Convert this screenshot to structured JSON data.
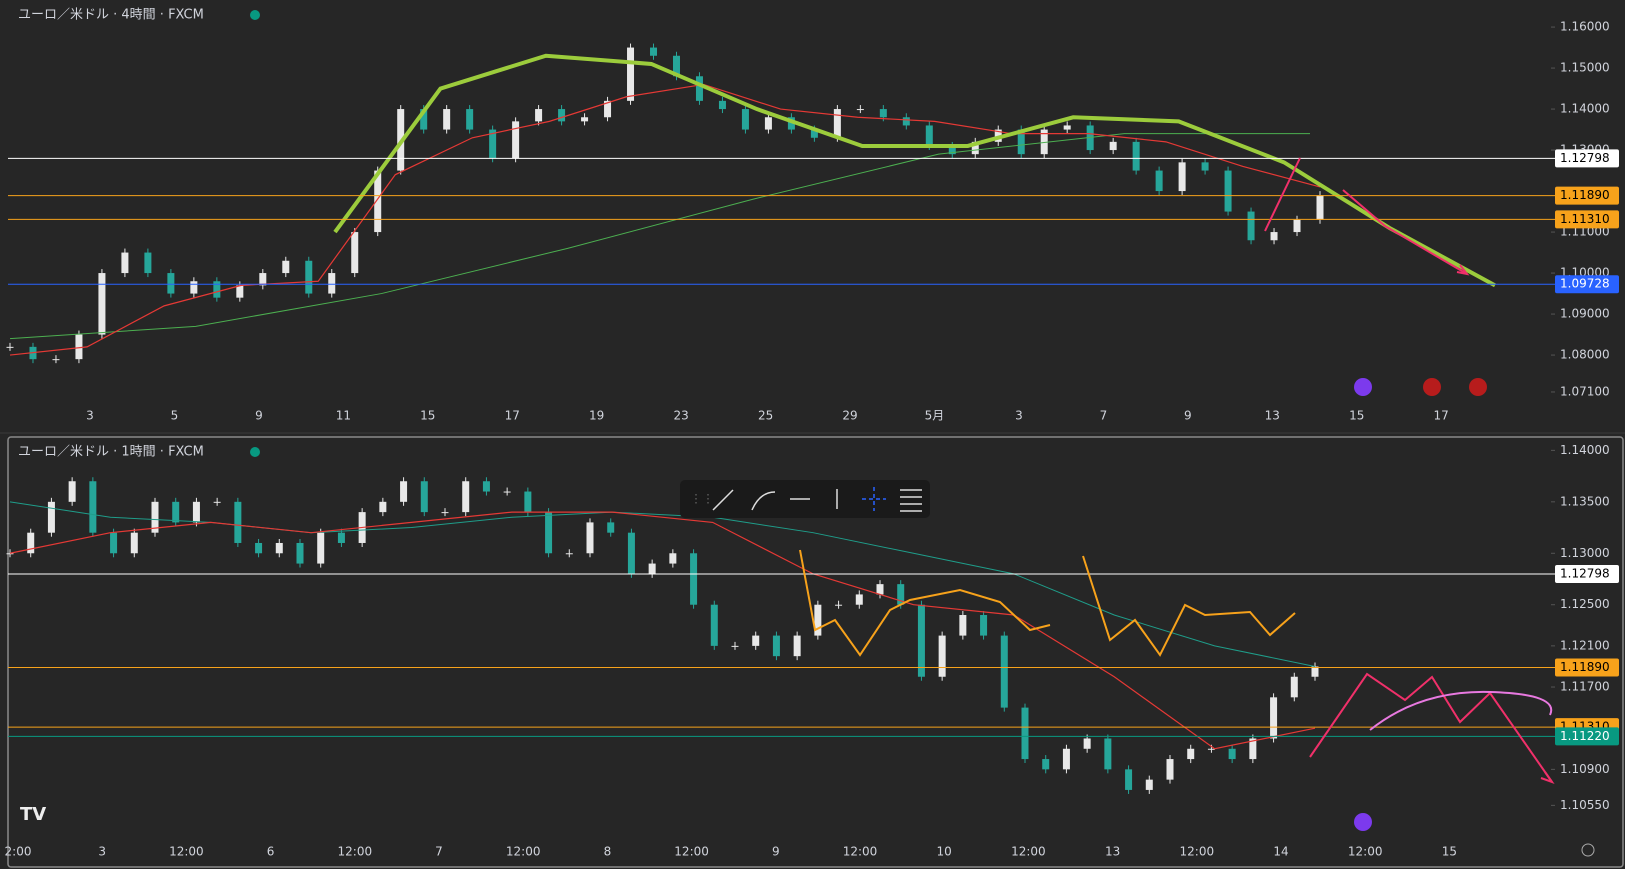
{
  "panels": [
    {
      "title": "ユーロ／米ドル · 4時間 · FXCM",
      "ylim": [
        1.0666,
        1.1666
      ],
      "yticks": [
        {
          "value": 1.16,
          "label": "1.16000"
        },
        {
          "value": 1.15,
          "label": "1.15000"
        },
        {
          "value": 1.14,
          "label": "1.14000"
        },
        {
          "value": 1.13,
          "label": "1.13000"
        },
        {
          "value": 1.11,
          "label": "1.11000"
        },
        {
          "value": 1.1,
          "label": "1.10000"
        },
        {
          "value": 1.09,
          "label": "1.09000"
        },
        {
          "value": 1.08,
          "label": "1.08000"
        },
        {
          "value": 1.071,
          "label": "1.07100"
        }
      ],
      "x_labels": [
        "3",
        "5",
        "9",
        "11",
        "15",
        "17",
        "19",
        "23",
        "25",
        "29",
        "5月",
        "3",
        "7",
        "9",
        "13",
        "15",
        "17"
      ],
      "levels": [
        {
          "value": 1.12798,
          "label": "1.12798",
          "color": "#ffffff"
        },
        {
          "value": 1.1189,
          "label": "1.11890",
          "color": "#f7a21b"
        },
        {
          "value": 1.1131,
          "label": "1.11310",
          "color": "#f7a21b"
        },
        {
          "value": 1.09728,
          "label": "1.09728",
          "color": "#2962ff"
        }
      ],
      "closes": [
        1.082,
        1.079,
        1.079,
        1.085,
        1.1,
        1.105,
        1.1,
        1.095,
        1.098,
        1.094,
        1.097,
        1.1,
        1.103,
        1.095,
        1.1,
        1.11,
        1.125,
        1.14,
        1.135,
        1.14,
        1.135,
        1.128,
        1.137,
        1.14,
        1.137,
        1.138,
        1.142,
        1.155,
        1.153,
        1.148,
        1.142,
        1.14,
        1.135,
        1.138,
        1.135,
        1.133,
        1.14,
        1.14,
        1.138,
        1.136,
        1.131,
        1.129,
        1.132,
        1.135,
        1.129,
        1.135,
        1.136,
        1.13,
        1.132,
        1.125,
        1.12,
        1.127,
        1.125,
        1.115,
        1.108,
        1.11,
        1.113,
        1.119
      ],
      "lines": [
        {
          "color": "#4caf50",
          "values": [
            1.084,
            1.087,
            1.095,
            1.106,
            1.118,
            1.129,
            1.134,
            1.134
          ]
        },
        {
          "color": "#e53935",
          "values": [
            1.08,
            1.082,
            1.092,
            1.097,
            1.098,
            1.124,
            1.133,
            1.137,
            1.143,
            1.146,
            1.14,
            1.138,
            1.137,
            1.134,
            1.134,
            1.132,
            1.126,
            1.121
          ]
        },
        {
          "color": "#9ccc3c",
          "values": [
            1.11,
            1.145,
            1.153,
            1.151,
            1.14,
            1.131,
            1.131,
            1.138,
            1.137,
            1.127,
            1.111,
            1.097
          ]
        }
      ]
    },
    {
      "title": "ユーロ／米ドル · 1時間 · FXCM",
      "ylim": [
        1.1033,
        1.1413
      ],
      "yticks": [
        {
          "value": 1.14,
          "label": "1.14000"
        },
        {
          "value": 1.135,
          "label": "1.13500"
        },
        {
          "value": 1.13,
          "label": "1.13000"
        },
        {
          "value": 1.125,
          "label": "1.12500"
        },
        {
          "value": 1.121,
          "label": "1.12100"
        },
        {
          "value": 1.117,
          "label": "1.11700"
        },
        {
          "value": 1.109,
          "label": "1.10900"
        },
        {
          "value": 1.1055,
          "label": "1.10550"
        }
      ],
      "x_labels": [
        "2:00",
        "3",
        "12:00",
        "6",
        "12:00",
        "7",
        "12:00",
        "8",
        "12:00",
        "9",
        "12:00",
        "10",
        "12:00",
        "13",
        "12:00",
        "14",
        "12:00",
        "15"
      ],
      "levels": [
        {
          "value": 1.12798,
          "label": "1.12798",
          "color": "#ffffff"
        },
        {
          "value": 1.1189,
          "label": "1.11890",
          "color": "#f7a21b"
        },
        {
          "value": 1.1131,
          "label": "1.11310",
          "color": "#f7a21b"
        },
        {
          "value": 1.1122,
          "label": "1.11220",
          "color": "#089981"
        }
      ],
      "closes": [
        1.13,
        1.132,
        1.135,
        1.137,
        1.132,
        1.13,
        1.132,
        1.135,
        1.133,
        1.135,
        1.135,
        1.131,
        1.13,
        1.131,
        1.129,
        1.132,
        1.131,
        1.134,
        1.135,
        1.137,
        1.134,
        1.134,
        1.137,
        1.136,
        1.136,
        1.134,
        1.13,
        1.13,
        1.133,
        1.132,
        1.128,
        1.129,
        1.13,
        1.125,
        1.121,
        1.121,
        1.122,
        1.12,
        1.122,
        1.125,
        1.125,
        1.126,
        1.127,
        1.125,
        1.118,
        1.122,
        1.124,
        1.122,
        1.115,
        1.11,
        1.109,
        1.111,
        1.112,
        1.109,
        1.107,
        1.108,
        1.11,
        1.111,
        1.111,
        1.11,
        1.112,
        1.116,
        1.118,
        1.119
      ],
      "lines": [
        {
          "color": "#1f9d8a",
          "values": [
            1.135,
            1.1335,
            1.133,
            1.132,
            1.1325,
            1.1335,
            1.134,
            1.1335,
            1.132,
            1.13,
            1.128,
            1.124,
            1.121,
            1.119
          ]
        },
        {
          "color": "#e53935",
          "values": [
            1.13,
            1.132,
            1.133,
            1.132,
            1.133,
            1.134,
            1.134,
            1.133,
            1.128,
            1.125,
            1.124,
            1.118,
            1.111,
            1.113
          ]
        }
      ]
    }
  ]
}
